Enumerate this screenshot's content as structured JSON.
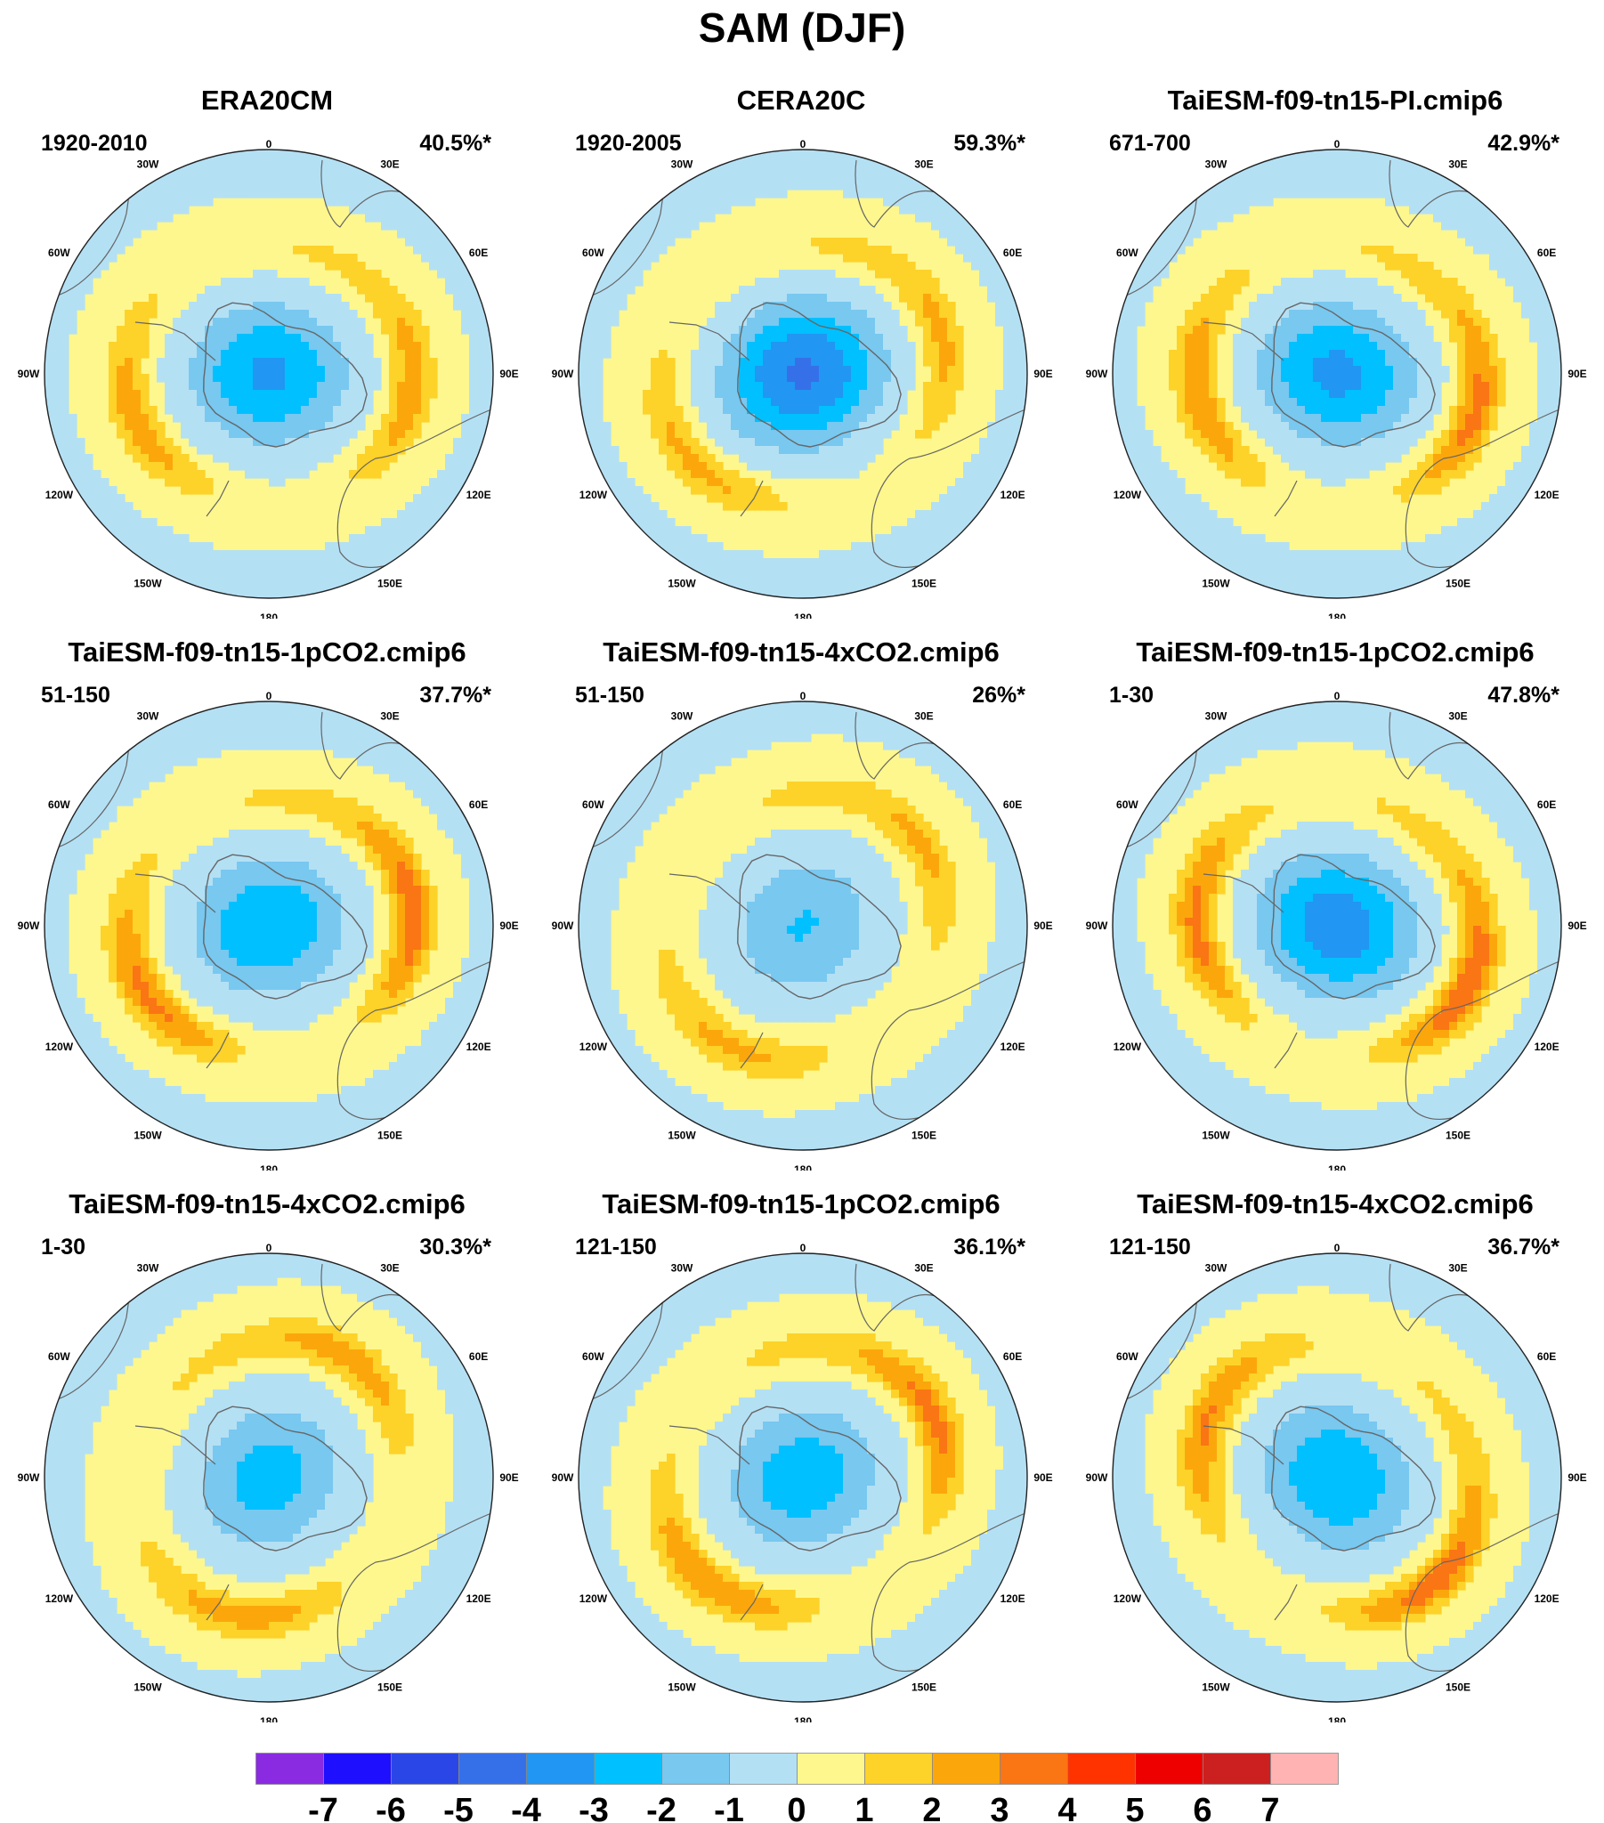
{
  "title": "SAM (DJF)",
  "longitude_labels": [
    "0",
    "30E",
    "60E",
    "90E",
    "120E",
    "150E",
    "180",
    "150W",
    "120W",
    "90W",
    "60W",
    "30W"
  ],
  "panels": [
    {
      "title": "ERA20CM",
      "period": "1920-2010",
      "variance": "40.5%*",
      "pattern": {
        "ring": 0.55,
        "core": -3.4,
        "outer": 0.6,
        "rot": 0
      }
    },
    {
      "title": "CERA20C",
      "period": "1920-2005",
      "variance": "59.3%*",
      "pattern": {
        "ring": 0.35,
        "core": -4.4,
        "outer": 0.2,
        "rot": 20
      }
    },
    {
      "title": "TaiESM-f09-tn15-PI.cmip6",
      "period": "671-700",
      "variance": "42.9%*",
      "pattern": {
        "ring": 0.9,
        "core": -3.5,
        "outer": 0.8,
        "rot": -10
      }
    },
    {
      "title": "TaiESM-f09-tn15-1pCO2.cmip6",
      "period": "51-150",
      "variance": "37.7%*",
      "pattern": {
        "ring": 1.1,
        "core": -3.2,
        "outer": 0.5,
        "rot": 10
      }
    },
    {
      "title": "TaiESM-f09-tn15-4xCO2.cmip6",
      "period": "51-150",
      "variance": "26%*",
      "pattern": {
        "ring": 0.3,
        "core": -2.3,
        "outer": 0.3,
        "rot": 40
      }
    },
    {
      "title": "TaiESM-f09-tn15-1pCO2.cmip6",
      "period": "1-30",
      "variance": "47.8%*",
      "pattern": {
        "ring": 1.2,
        "core": -3.9,
        "outer": 0.5,
        "rot": -20
      }
    },
    {
      "title": "TaiESM-f09-tn15-4xCO2.cmip6",
      "period": "1-30",
      "variance": "30.3%*",
      "pattern": {
        "ring": 0.5,
        "core": -2.7,
        "outer": 0.4,
        "rot": 60
      }
    },
    {
      "title": "TaiESM-f09-tn15-1pCO2.cmip6",
      "period": "121-150",
      "variance": "36.1%*",
      "pattern": {
        "ring": 0.9,
        "core": -2.9,
        "outer": 0.9,
        "rot": 30
      }
    },
    {
      "title": "TaiESM-f09-tn15-4xCO2.cmip6",
      "period": "121-150",
      "variance": "36.7%*",
      "pattern": {
        "ring": 1.0,
        "core": -3.2,
        "outer": 1.0,
        "rot": -40
      }
    }
  ],
  "colorbar": {
    "labels": [
      "-7",
      "-6",
      "-5",
      "-4",
      "-3",
      "-2",
      "-1",
      "0",
      "1",
      "2",
      "3",
      "4",
      "5",
      "6",
      "7"
    ],
    "colors": [
      "#8a2be2",
      "#1e10ff",
      "#2a46e6",
      "#3670e8",
      "#2196f3",
      "#00c0ff",
      "#78c8f0",
      "#b4e0f4",
      "#fdf78d",
      "#fdd229",
      "#fba70c",
      "#fa7514",
      "#ff3300",
      "#ee0000",
      "#cc1f1f",
      "#ffb3b3"
    ]
  }
}
